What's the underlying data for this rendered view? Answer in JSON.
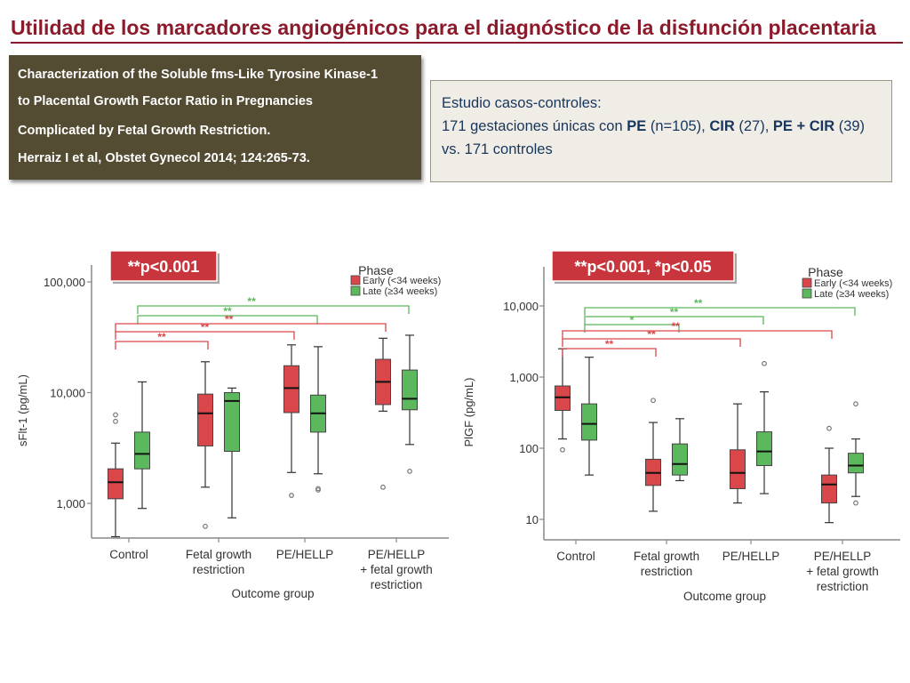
{
  "slide": {
    "title": "Utilidad de los marcadores angiogénicos para el diagnóstico de la disfunción placentaria",
    "reference": {
      "line1": "Characterization of the Soluble fms-Like Tyrosine Kinase-1",
      "line2": "to Placental Growth Factor Ratio in Pregnancies",
      "line3": "Complicated by Fetal Growth Restriction.",
      "line4": "Herraiz I et al, Obstet Gynecol 2014; 124:265-73."
    },
    "study": {
      "line1": "Estudio casos-controles:",
      "line2_a": "171 gestaciones únicas con ",
      "pe": "PE",
      "line2_b": " (n=105), ",
      "cir": "CIR",
      "line2_c": " (27), ",
      "pecir": "PE + CIR",
      "line2_d": " (39)",
      "line3": "vs. 171 controles"
    }
  },
  "colors": {
    "early": "#d9474a",
    "late": "#5cb85c",
    "title": "#8b1a2b",
    "badge": "#c9353d"
  },
  "chart_data": [
    {
      "type": "box",
      "badge": "**p<0.001",
      "ylabel": "sFlt-1 (pg/mL)",
      "xlabel": "Outcome group",
      "yscale": "log",
      "ylim": [
        500,
        200000
      ],
      "yticks": [
        1000,
        10000,
        100000
      ],
      "ytick_labels": [
        "1,000",
        "10,000",
        "100,000"
      ],
      "legend": {
        "title": "Phase",
        "early": "Early (<34 weeks)",
        "late": "Late (≥34 weeks)",
        "position": "top-right"
      },
      "categories": [
        "Control",
        "Fetal growth\nrestriction",
        "PE/HELLP",
        "PE/HELLP\n+ fetal growth\nrestriction"
      ],
      "series": [
        {
          "name": "Early (<34 weeks)",
          "boxes": [
            {
              "min": 500,
              "q1": 1100,
              "median": 1550,
              "q3": 2050,
              "max": 3500,
              "outliers": [
                5500,
                6300
              ]
            },
            {
              "min": 1400,
              "q1": 3300,
              "median": 6500,
              "q3": 9700,
              "max": 19000,
              "outliers": [
                620
              ]
            },
            {
              "min": 1900,
              "q1": 6600,
              "median": 11000,
              "q3": 17500,
              "max": 27000,
              "outliers": [
                1180
              ]
            },
            {
              "min": 6800,
              "q1": 7800,
              "median": 12500,
              "q3": 20000,
              "max": 31000,
              "outliers": [
                1400
              ]
            }
          ]
        },
        {
          "name": "Late (≥34 weeks)",
          "boxes": [
            {
              "min": 900,
              "q1": 2050,
              "median": 2800,
              "q3": 4400,
              "max": 12500,
              "outliers": []
            },
            {
              "min": 740,
              "q1": 2950,
              "median": 8400,
              "q3": 10000,
              "max": 11000,
              "outliers": []
            },
            {
              "min": 1850,
              "q1": 4400,
              "median": 6500,
              "q3": 9500,
              "max": 26000,
              "outliers": [
                1320,
                1360
              ]
            },
            {
              "min": 3400,
              "q1": 7000,
              "median": 8800,
              "q3": 16000,
              "max": 33000,
              "outliers": [
                1950
              ]
            }
          ]
        }
      ],
      "brackets": [
        {
          "color": "late",
          "from": 0,
          "to": 3,
          "label": "**"
        },
        {
          "color": "late",
          "from": 0,
          "to": 2,
          "label": "**"
        },
        {
          "color": "early",
          "from": 0,
          "to": 3,
          "label": "**"
        },
        {
          "color": "early",
          "from": 0,
          "to": 2,
          "label": "**"
        },
        {
          "color": "early",
          "from": 0,
          "to": 1,
          "label": "**"
        }
      ]
    },
    {
      "type": "box",
      "badge": "**p<0.001, *p<0.05",
      "ylabel": "PlGF (pg/mL)",
      "xlabel": "Outcome group",
      "yscale": "log",
      "ylim": [
        5,
        30000
      ],
      "yticks": [
        10,
        100,
        1000,
        10000
      ],
      "ytick_labels": [
        "10",
        "100",
        "1,000",
        "10,000"
      ],
      "legend": {
        "title": "Phase",
        "early": "Early (<34 weeks)",
        "late": "Late (≥34 weeks)",
        "position": "top-right"
      },
      "categories": [
        "Control",
        "Fetal growth\nrestriction",
        "PE/HELLP",
        "PE/HELLP\n+ fetal growth\nrestriction"
      ],
      "series": [
        {
          "name": "Early (<34 weeks)",
          "boxes": [
            {
              "min": 135,
              "q1": 340,
              "median": 520,
              "q3": 750,
              "max": 2500,
              "outliers": [
                95
              ]
            },
            {
              "min": 13,
              "q1": 30,
              "median": 45,
              "q3": 70,
              "max": 230,
              "outliers": [
                470
              ]
            },
            {
              "min": 17,
              "q1": 27,
              "median": 45,
              "q3": 95,
              "max": 420,
              "outliers": []
            },
            {
              "min": 9,
              "q1": 17,
              "median": 31,
              "q3": 42,
              "max": 100,
              "outliers": [
                190
              ]
            }
          ]
        },
        {
          "name": "Late (≥34 weeks)",
          "boxes": [
            {
              "min": 42,
              "q1": 130,
              "median": 220,
              "q3": 420,
              "max": 1900,
              "outliers": []
            },
            {
              "min": 35,
              "q1": 42,
              "median": 60,
              "q3": 115,
              "max": 260,
              "outliers": []
            },
            {
              "min": 23,
              "q1": 57,
              "median": 90,
              "q3": 170,
              "max": 620,
              "outliers": [
                1550
              ]
            },
            {
              "min": 21,
              "q1": 45,
              "median": 57,
              "q3": 85,
              "max": 135,
              "outliers": [
                17,
                420
              ]
            }
          ]
        }
      ],
      "brackets": [
        {
          "color": "late",
          "from": 0,
          "to": 3,
          "label": "**"
        },
        {
          "color": "late",
          "from": 0,
          "to": 2,
          "label": "**"
        },
        {
          "color": "late",
          "from": 0,
          "to": 1,
          "label": "*"
        },
        {
          "color": "early",
          "from": 0,
          "to": 3,
          "label": "**"
        },
        {
          "color": "early",
          "from": 0,
          "to": 2,
          "label": "**"
        },
        {
          "color": "early",
          "from": 0,
          "to": 1,
          "label": "**"
        }
      ]
    }
  ]
}
